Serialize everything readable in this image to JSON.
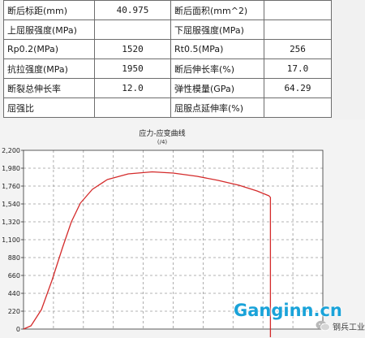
{
  "table": {
    "rows": [
      [
        {
          "label": "断后标距(mm)",
          "value": "40.975"
        },
        {
          "label": "断后面积(mm^2)",
          "value": ""
        }
      ],
      [
        {
          "label": "上屈服强度(MPa)",
          "value": ""
        },
        {
          "label": "下屈服强度(MPa)",
          "value": ""
        }
      ],
      [
        {
          "label": "Rp0.2(MPa)",
          "value": "1520"
        },
        {
          "label": "Rt0.5(MPa)",
          "value": "256"
        }
      ],
      [
        {
          "label": "抗拉强度(MPa)",
          "value": "1950"
        },
        {
          "label": "断后伸长率(%)",
          "value": "17.0"
        }
      ],
      [
        {
          "label": "断裂总伸长率",
          "value": "12.0"
        },
        {
          "label": "弹性模量(GPa)",
          "value": "64.29"
        }
      ],
      [
        {
          "label": "屈强比",
          "value": ""
        },
        {
          "label": "屈服点延伸率(%)",
          "value": ""
        }
      ]
    ]
  },
  "chart_data": {
    "type": "line",
    "title": "应力-应变曲线",
    "subtitle": "(/4)",
    "xlabel": "",
    "ylabel": "",
    "yticks": [
      "0",
      "220",
      "440",
      "660",
      "880",
      "1,100",
      "1,320",
      "1,540",
      "1,760",
      "1,980",
      "2,200"
    ],
    "ylim": [
      0,
      2200
    ],
    "xlim": [
      0,
      10
    ],
    "grid": true,
    "series": [
      {
        "color": "#d42b2b",
        "x": [
          0,
          0.25,
          0.6,
          0.95,
          1.3,
          1.6,
          1.9,
          2.3,
          2.8,
          3.5,
          4.3,
          5.0,
          5.8,
          6.5,
          7.2,
          7.8,
          8.2,
          8.25,
          8.25
        ],
        "y": [
          0,
          40,
          240,
          600,
          1000,
          1320,
          1550,
          1720,
          1840,
          1910,
          1935,
          1920,
          1880,
          1830,
          1770,
          1700,
          1640,
          1620,
          -100
        ]
      }
    ],
    "colors": {
      "curve": "#d42b2b",
      "grid": "#9a9a9a",
      "axis": "#333333"
    }
  },
  "watermark": {
    "site": "Ganginn.cn",
    "brand": "钢兵工业",
    "brand_icon": "wechat-icon"
  }
}
